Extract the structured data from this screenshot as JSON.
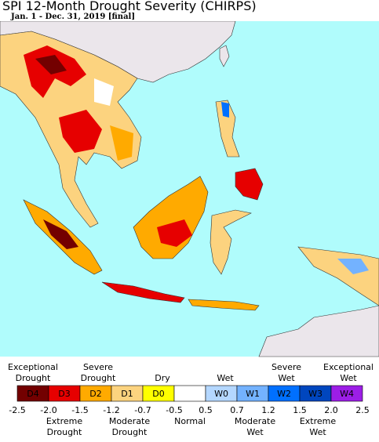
{
  "header": {
    "title": "SPI 12-Month Drought Severity (CHIRPS)",
    "subtitle": "Jan. 1 - Dec. 31, 2019 [final]"
  },
  "legend": {
    "classes": [
      {
        "code": "D4",
        "color": "#730000"
      },
      {
        "code": "D3",
        "color": "#e60000"
      },
      {
        "code": "D2",
        "color": "#ffaa00"
      },
      {
        "code": "D1",
        "color": "#fcd37f"
      },
      {
        "code": "D0",
        "color": "#ffff00"
      },
      {
        "color": "#ffffff"
      },
      {
        "code": "W0",
        "color": "#b4d7ff"
      },
      {
        "code": "W1",
        "color": "#73b2ff"
      },
      {
        "code": "W2",
        "color": "#0070ff"
      },
      {
        "code": "W3",
        "color": "#0046be"
      },
      {
        "code": "W4",
        "color": "#9c1ee6"
      }
    ],
    "boundaries": [
      "-2.5",
      "-2.0",
      "-1.5",
      "-1.2",
      "-0.7",
      "-0.5",
      "0.5",
      "0.7",
      "1.2",
      "1.5",
      "2.0",
      "2.5"
    ],
    "labels_above": [
      [
        "Exceptional",
        "Drought"
      ],
      [
        "Severe",
        "Drought"
      ],
      [
        "Dry"
      ],
      [
        "Wet"
      ],
      [
        "Severe",
        "Wet"
      ],
      [
        "Exceptional",
        "Wet"
      ]
    ],
    "labels_below": [
      [
        "Extreme",
        "Drought"
      ],
      [
        "Moderate",
        "Drought"
      ],
      [
        "Normal"
      ],
      [
        "Moderate",
        "Wet"
      ],
      [
        "Extreme",
        "Wet"
      ]
    ]
  }
}
